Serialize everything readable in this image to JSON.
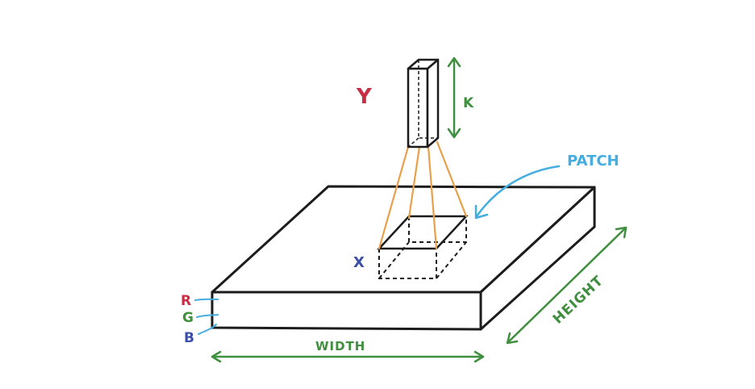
{
  "labels": {
    "y": "Y",
    "k": "K",
    "patch": "PATCH",
    "x": "X",
    "r": "R",
    "g": "G",
    "b": "B",
    "width": "WIDTH",
    "height": "HEIGHT"
  },
  "colors": {
    "outline": "#1c1c1c",
    "projection": "#e8a04a",
    "green": "#3f8f3f",
    "red": "#c62f46",
    "blue": "#3c4fa8",
    "cyan": "#45ade0",
    "background": "#ffffff"
  }
}
